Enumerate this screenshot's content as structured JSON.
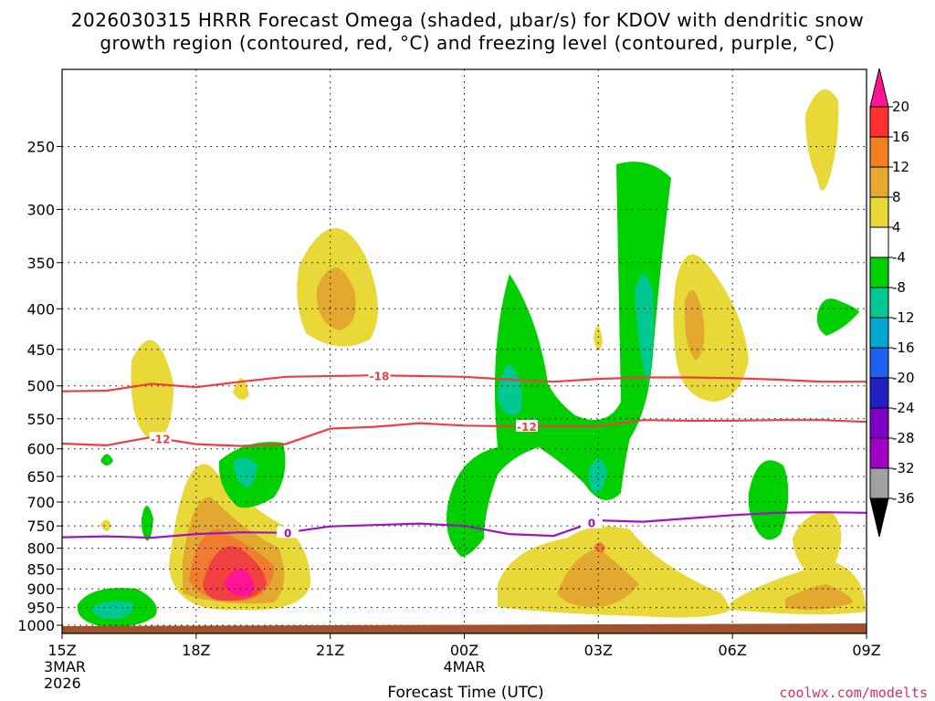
{
  "chart_data": {
    "type": "contour",
    "title_line1": "2026030315 HRRR Forecast Omega (shaded, μbar/s) for KDOV with dendritic snow",
    "title_line2": "growth region (contoured, red, °C) and freezing level (contoured, purple, °C)",
    "xlabel": "Forecast Time (UTC)",
    "credit": "coolwx.com/modelts",
    "x_ticks": [
      {
        "hour": 0,
        "label": "15Z",
        "sub1": "3MAR",
        "sub2": "2026"
      },
      {
        "hour": 3,
        "label": "18Z",
        "sub1": "",
        "sub2": ""
      },
      {
        "hour": 6,
        "label": "21Z",
        "sub1": "",
        "sub2": ""
      },
      {
        "hour": 9,
        "label": "00Z",
        "sub1": "4MAR",
        "sub2": ""
      },
      {
        "hour": 12,
        "label": "03Z",
        "sub1": "",
        "sub2": ""
      },
      {
        "hour": 15,
        "label": "06Z",
        "sub1": "",
        "sub2": ""
      },
      {
        "hour": 18,
        "label": "09Z",
        "sub1": "",
        "sub2": ""
      }
    ],
    "y_ticks": [
      250,
      300,
      350,
      400,
      450,
      500,
      550,
      600,
      650,
      700,
      750,
      800,
      850,
      900,
      950,
      1000
    ],
    "y_axis_pressure_hPa_range": [
      1024,
      200
    ],
    "colorbar": {
      "levels": [
        "20",
        "16",
        "12",
        "8",
        "4",
        "-4",
        "-8",
        "-12",
        "-16",
        "-20",
        "-24",
        "-28",
        "-32",
        "-36"
      ],
      "colors": [
        "#ff1493",
        "#ff3030",
        "#f08020",
        "#e8a830",
        "#e8d838",
        "#ffffff",
        "#00d000",
        "#00c890",
        "#00a8d0",
        "#2060f0",
        "#2020c0",
        "#8000c8",
        "#a000c8",
        "#a0a0a0",
        "#000000"
      ]
    },
    "contours": [
      {
        "name": "dgz_-18",
        "label": "-18",
        "color": "#ee3f3f",
        "points": [
          [
            0,
            508
          ],
          [
            1,
            507
          ],
          [
            2,
            497
          ],
          [
            3,
            502
          ],
          [
            4,
            494
          ],
          [
            5,
            487
          ],
          [
            6,
            486
          ],
          [
            7,
            485
          ],
          [
            8,
            486
          ],
          [
            9,
            487
          ],
          [
            10,
            491
          ],
          [
            11,
            494
          ],
          [
            12,
            490
          ],
          [
            13,
            488
          ],
          [
            14,
            488
          ],
          [
            15,
            489
          ],
          [
            16,
            491
          ],
          [
            17,
            494
          ],
          [
            18,
            494
          ]
        ],
        "label_at": 7.1
      },
      {
        "name": "dgz_-12",
        "label": "-12",
        "color": "#ee3f3f",
        "points": [
          [
            0,
            591
          ],
          [
            1,
            594
          ],
          [
            2,
            580
          ],
          [
            3,
            592
          ],
          [
            4,
            595
          ],
          [
            5,
            592
          ],
          [
            6,
            566
          ],
          [
            7,
            563
          ],
          [
            8,
            557
          ],
          [
            9,
            561
          ],
          [
            10,
            562
          ],
          [
            11,
            562
          ],
          [
            12,
            562
          ],
          [
            13,
            552
          ],
          [
            14,
            553
          ],
          [
            15,
            553
          ],
          [
            16,
            552
          ],
          [
            17,
            552
          ],
          [
            18,
            555
          ]
        ],
        "label_at": 2.2
      },
      {
        "name": "dgz_-12b",
        "label": "-12",
        "color": "#ee3f3f",
        "points": [],
        "label_at": 10.4
      },
      {
        "name": "freezing_0",
        "label": "0",
        "color": "#9c14c4",
        "points": [
          [
            0,
            775
          ],
          [
            1,
            773
          ],
          [
            2,
            776
          ],
          [
            3,
            768
          ],
          [
            4,
            764
          ],
          [
            5,
            765
          ],
          [
            6,
            751
          ],
          [
            7,
            748
          ],
          [
            8,
            745
          ],
          [
            9,
            750
          ],
          [
            10,
            768
          ],
          [
            11,
            772
          ],
          [
            12,
            738
          ],
          [
            13,
            741
          ],
          [
            14,
            734
          ],
          [
            15,
            727
          ],
          [
            16,
            722
          ],
          [
            17,
            721
          ],
          [
            18,
            722
          ]
        ],
        "label_at": 5.05,
        "label2_at": 11.85
      }
    ]
  }
}
